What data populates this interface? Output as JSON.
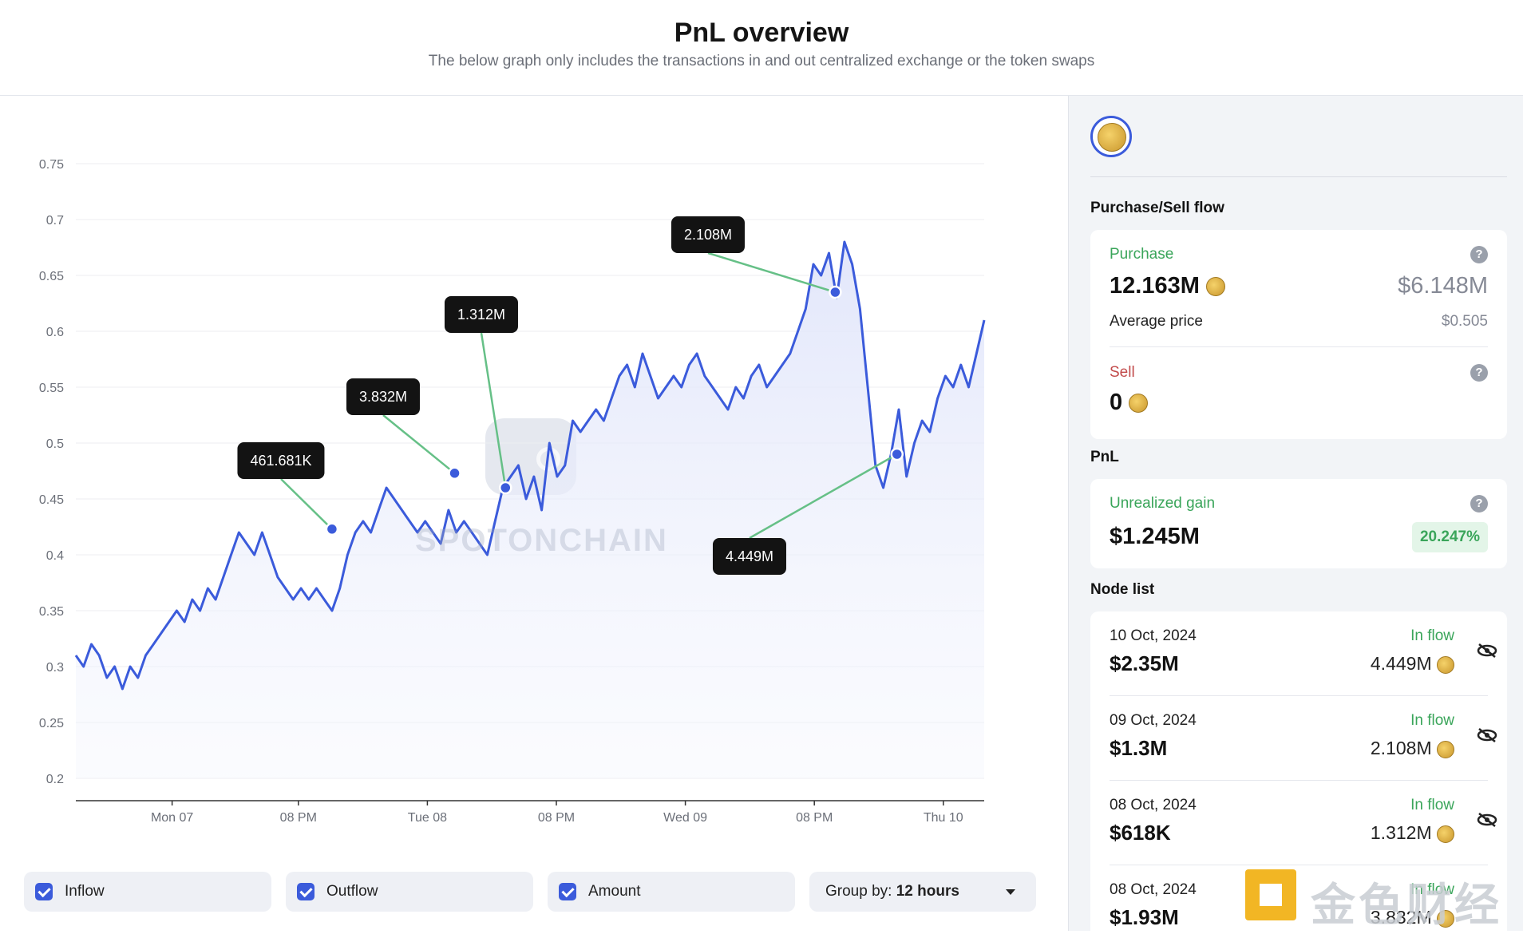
{
  "header": {
    "title": "PnL overview",
    "subtitle": "The below graph only includes the transactions in and out centralized exchange or the token swaps"
  },
  "chart_data": {
    "type": "area",
    "ylim": [
      0.2,
      0.75
    ],
    "y_ticks": [
      "0.75",
      "0.7",
      "0.65",
      "0.6",
      "0.55",
      "0.5",
      "0.45",
      "0.4",
      "0.35",
      "0.3",
      "0.25",
      "0.2"
    ],
    "x_ticks": [
      "Mon 07",
      "08 PM",
      "Tue 08",
      "08 PM",
      "Wed 09",
      "08 PM",
      "Thu 10"
    ],
    "series": [
      {
        "values": [
          0.31,
          0.3,
          0.32,
          0.31,
          0.29,
          0.3,
          0.28,
          0.3,
          0.29,
          0.31,
          0.32,
          0.33,
          0.34,
          0.35,
          0.34,
          0.36,
          0.35,
          0.37,
          0.36,
          0.38,
          0.4,
          0.42,
          0.41,
          0.4,
          0.42,
          0.4,
          0.38,
          0.37,
          0.36,
          0.37,
          0.36,
          0.37,
          0.36,
          0.35,
          0.37,
          0.4,
          0.42,
          0.43,
          0.42,
          0.44,
          0.46,
          0.45,
          0.44,
          0.43,
          0.42,
          0.43,
          0.42,
          0.41,
          0.44,
          0.42,
          0.43,
          0.42,
          0.41,
          0.4,
          0.43,
          0.46,
          0.47,
          0.48,
          0.45,
          0.47,
          0.44,
          0.5,
          0.47,
          0.48,
          0.52,
          0.51,
          0.52,
          0.53,
          0.52,
          0.54,
          0.56,
          0.57,
          0.55,
          0.58,
          0.56,
          0.54,
          0.55,
          0.56,
          0.55,
          0.57,
          0.58,
          0.56,
          0.55,
          0.54,
          0.53,
          0.55,
          0.54,
          0.56,
          0.57,
          0.55,
          0.56,
          0.57,
          0.58,
          0.6,
          0.62,
          0.66,
          0.65,
          0.67,
          0.63,
          0.68,
          0.66,
          0.62,
          0.55,
          0.48,
          0.46,
          0.49,
          0.53,
          0.47,
          0.5,
          0.52,
          0.51,
          0.54,
          0.56,
          0.55,
          0.57,
          0.55,
          0.58,
          0.61
        ]
      }
    ],
    "annotations": [
      {
        "label": "461.681K",
        "x_frac": 0.282,
        "y": 0.423
      },
      {
        "label": "3.832M",
        "x_frac": 0.417,
        "y": 0.473
      },
      {
        "label": "1.312M",
        "x_frac": 0.473,
        "y": 0.46
      },
      {
        "label": "2.108M",
        "x_frac": 0.836,
        "y": 0.635
      },
      {
        "label": "4.449M",
        "x_frac": 0.904,
        "y": 0.49
      }
    ],
    "watermark": "SPOTONCHAIN"
  },
  "controls": {
    "inflow": "Inflow",
    "outflow": "Outflow",
    "amount": "Amount",
    "group_label": "Group by:",
    "group_value": "12 hours"
  },
  "panel": {
    "flow_title": "Purchase/Sell flow",
    "purchase_label": "Purchase",
    "purchase_qty": "12.163M",
    "purchase_usd": "$6.148M",
    "avg_label": "Average price",
    "avg_value": "$0.505",
    "sell_label": "Sell",
    "sell_qty": "0",
    "pnl_title": "PnL",
    "unrealized_label": "Unrealized gain",
    "unrealized_value": "$1.245M",
    "unrealized_pct": "20.247%",
    "node_title": "Node list",
    "nodes": [
      {
        "date": "10 Oct, 2024",
        "amount": "$2.35M",
        "flow": "In flow",
        "qty": "4.449M"
      },
      {
        "date": "09 Oct, 2024",
        "amount": "$1.3M",
        "flow": "In flow",
        "qty": "2.108M"
      },
      {
        "date": "08 Oct, 2024",
        "amount": "$618K",
        "flow": "In flow",
        "qty": "1.312M"
      },
      {
        "date": "08 Oct, 2024",
        "amount": "$1.93M",
        "flow": "In flow",
        "qty": "3.832M"
      }
    ]
  },
  "brand_watermark": "金色财经"
}
